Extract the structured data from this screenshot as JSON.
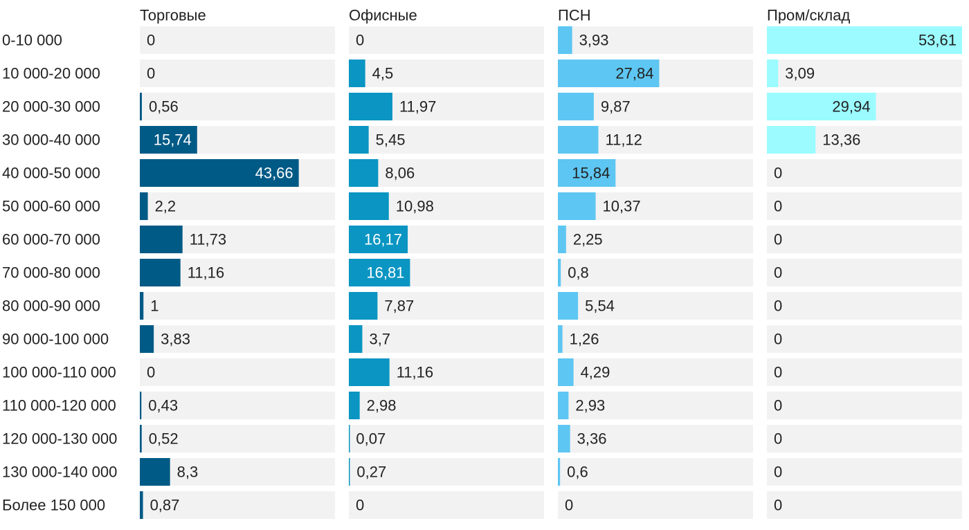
{
  "chart_data": {
    "type": "bar",
    "orientation": "horizontal",
    "categories": [
      "0-10 000",
      "10 000-20 000",
      "20 000-30 000",
      "30 000-40 000",
      "40 000-50 000",
      "50 000-60 000",
      "60 000-70 000",
      "70 000-80 000",
      "80 000-90 000",
      "90 000-100 000",
      "100 000-110 000",
      "110 000-120 000",
      "120 000-130 000",
      "130 000-140 000",
      "Более 150 000"
    ],
    "series": [
      {
        "name": "Торговые",
        "color": "#005a86",
        "label_color": "#ffffff",
        "values": [
          0,
          0,
          0.56,
          15.74,
          43.66,
          2.2,
          11.73,
          11.16,
          1,
          3.83,
          0,
          0.43,
          0.52,
          8.3,
          0.87
        ],
        "labels": [
          "0",
          "0",
          "0,56",
          "15,74",
          "43,66",
          "2,2",
          "11,73",
          "11,16",
          "1",
          "3,83",
          "0",
          "0,43",
          "0,52",
          "8,3",
          "0,87"
        ]
      },
      {
        "name": "Офисные",
        "color": "#0a95c2",
        "label_color": "#ffffff",
        "values": [
          0,
          4.5,
          11.97,
          5.45,
          8.06,
          10.98,
          16.17,
          16.81,
          7.87,
          3.7,
          11.16,
          2.98,
          0.07,
          0.27,
          0
        ],
        "labels": [
          "0",
          "4,5",
          "11,97",
          "5,45",
          "8,06",
          "10,98",
          "16,17",
          "16,81",
          "7,87",
          "3,7",
          "11,16",
          "2,98",
          "0,07",
          "0,27",
          "0"
        ]
      },
      {
        "name": "ПСН",
        "color": "#5ec6f2",
        "label_color": "#222222",
        "values": [
          3.93,
          27.84,
          9.87,
          11.12,
          15.84,
          10.37,
          2.25,
          0.8,
          5.54,
          1.26,
          4.29,
          2.93,
          3.36,
          0.6,
          0
        ],
        "labels": [
          "3,93",
          "27,84",
          "9,87",
          "11,12",
          "15,84",
          "10,37",
          "2,25",
          "0,8",
          "5,54",
          "1,26",
          "4,29",
          "2,93",
          "3,36",
          "0,6",
          "0"
        ]
      },
      {
        "name": "Пром/склад",
        "color": "#9bfbff",
        "label_color": "#222222",
        "values": [
          53.61,
          3.09,
          29.94,
          13.36,
          0,
          0,
          0,
          0,
          0,
          0,
          0,
          0,
          0,
          0,
          0
        ],
        "labels": [
          "53,61",
          "3,09",
          "29,94",
          "13,36",
          "0",
          "0",
          "0",
          "0",
          "0",
          "0",
          "0",
          "0",
          "0",
          "0",
          "0"
        ]
      }
    ],
    "background_color": "#f2f2f2",
    "xlabel": "",
    "ylabel": "",
    "legend": "none",
    "grid": false
  }
}
